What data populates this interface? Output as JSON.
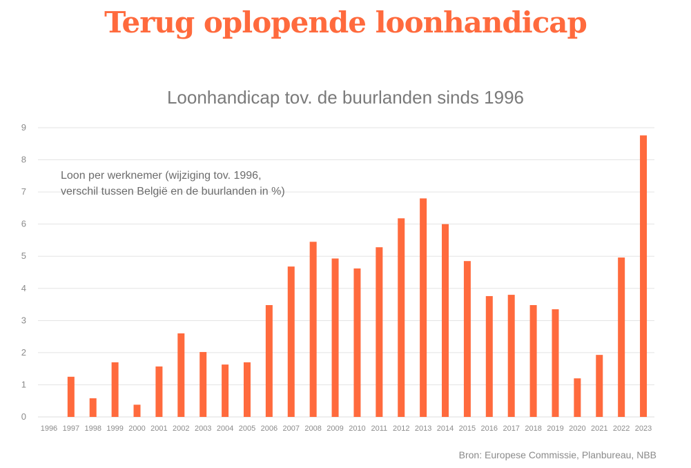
{
  "header": {
    "headline": "Terug oplopende loonhandicap",
    "source": "Bron: Europese Commissie, Planbureau, NBB"
  },
  "colors": {
    "accent": "#ff6a3d",
    "bar": "#ff6a3d",
    "grid": "#e3e3e3",
    "text": "#7a7a7a"
  },
  "chart_data": {
    "type": "bar",
    "title": "Loonhandicap tov. de buurlanden sinds 1996",
    "annotation": [
      "Loon per werknemer (wijziging tov. 1996,",
      "verschil tussen België en de buurlanden in %)"
    ],
    "xlabel": "",
    "ylabel": "",
    "ylim": [
      0,
      9
    ],
    "yticks": [
      0,
      1,
      2,
      3,
      4,
      5,
      6,
      7,
      8,
      9
    ],
    "grid": true,
    "categories": [
      "1996",
      "1997",
      "1998",
      "1999",
      "2000",
      "2001",
      "2002",
      "2003",
      "2004",
      "2005",
      "2006",
      "2007",
      "2008",
      "2009",
      "2010",
      "2011",
      "2012",
      "2013",
      "2014",
      "2015",
      "2016",
      "2017",
      "2018",
      "2019",
      "2020",
      "2021",
      "2022",
      "2023"
    ],
    "values": [
      0,
      1.25,
      0.58,
      1.7,
      0.38,
      1.57,
      2.6,
      2.02,
      1.63,
      1.7,
      3.48,
      4.68,
      5.45,
      4.93,
      4.62,
      5.28,
      6.18,
      6.8,
      6.0,
      4.85,
      3.76,
      3.8,
      3.48,
      3.35,
      1.2,
      1.93,
      4.96,
      8.76
    ]
  }
}
